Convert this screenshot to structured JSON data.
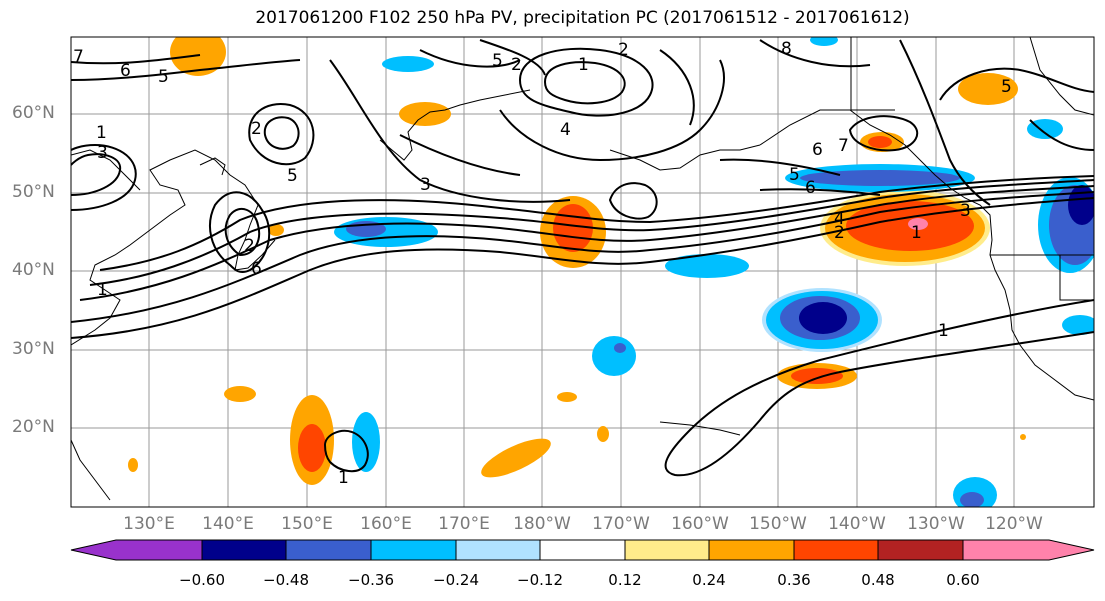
{
  "title": "2017061200 F102 250 hPa PV, precipitation PC (2017061512 - 2017061612)",
  "lat_labels": [
    "60°N",
    "50°N",
    "40°N",
    "30°N",
    "20°N"
  ],
  "lon_labels": [
    "130°E",
    "140°E",
    "150°E",
    "160°E",
    "170°E",
    "180°W",
    "170°W",
    "160°W",
    "150°W",
    "140°W",
    "130°W",
    "120°W"
  ],
  "contour_labels": [
    "7",
    "6",
    "5",
    "1",
    "3",
    "5",
    "2",
    "4",
    "5",
    "2",
    "1",
    "2",
    "8",
    "7",
    "6",
    "5",
    "6",
    "5",
    "1",
    "2",
    "3",
    "4",
    "1",
    "2",
    "1",
    "1",
    "3",
    "6"
  ],
  "colorbar": {
    "colors": [
      "#9932cc",
      "#00008b",
      "#3a5fcd",
      "#00bfff",
      "#b0e2ff",
      "#ffffff",
      "#ffec8b",
      "#ffa500",
      "#ff4500",
      "#b22222",
      "#ff82ab"
    ],
    "tick_labels": [
      "−0.60",
      "−0.48",
      "−0.36",
      "−0.24",
      "−0.12",
      "0.12",
      "0.24",
      "0.36",
      "0.48",
      "0.60"
    ]
  }
}
